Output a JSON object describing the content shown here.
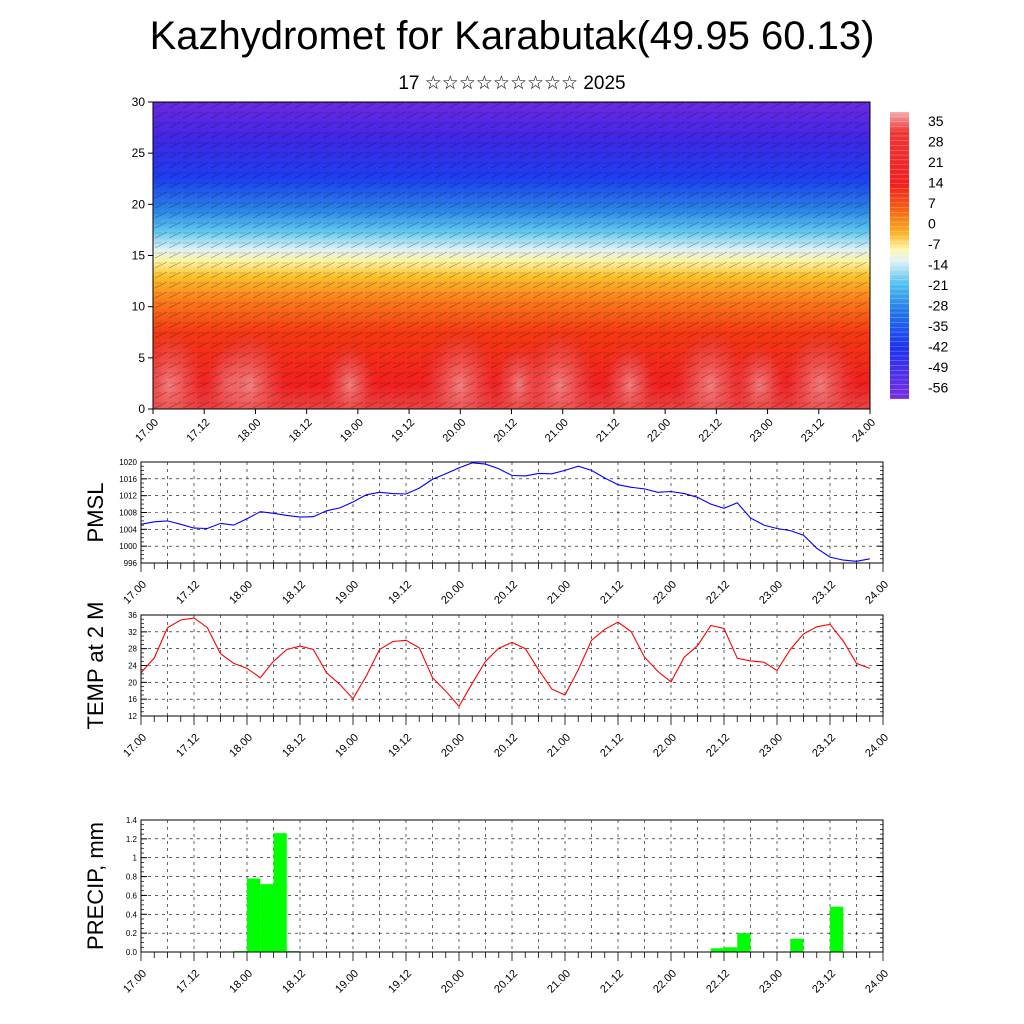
{
  "title": "Kazhydromet for Karabutak(49.95 60.13)",
  "subtitle": "17 ☆☆☆☆☆☆☆☆☆ 2025",
  "colors": {
    "pmsl_line": "#0000ff",
    "temp_line": "#ff0000",
    "precip_bar": "#00ff00"
  },
  "chart_data": [
    {
      "type": "heatmap",
      "name": "cross-section",
      "x_labels": [
        "17.00",
        "17.12",
        "18.00",
        "18.12",
        "19.00",
        "19.12",
        "20.00",
        "20.12",
        "21.00",
        "21.12",
        "22.00",
        "22.12",
        "23.00",
        "23.12",
        "24.00"
      ],
      "yticks": [
        0,
        5,
        10,
        15,
        20,
        25,
        30
      ],
      "ylim": [
        0,
        30
      ],
      "colorbar_labels": [
        "35",
        "28",
        "21",
        "14",
        "7",
        "0",
        "-7",
        "-14",
        "-21",
        "-28",
        "-35",
        "-42",
        "-49",
        "-56"
      ],
      "colorbar_range": [
        -60,
        38
      ]
    },
    {
      "type": "line",
      "name": "pmsl",
      "ylabel": "PMSL",
      "x_labels": [
        "17.00",
        "17.12",
        "18.00",
        "18.12",
        "19.00",
        "19.12",
        "20.00",
        "20.12",
        "21.00",
        "21.12",
        "22.00",
        "22.12",
        "23.00",
        "23.12",
        "24.00"
      ],
      "yticks": [
        996,
        1000,
        1004,
        1008,
        1012,
        1016,
        1020
      ],
      "ylim": [
        996,
        1020
      ],
      "x": [
        0,
        3,
        6,
        9,
        12,
        15,
        18,
        21,
        24,
        27,
        30,
        33,
        36,
        39,
        42,
        45,
        48,
        51,
        54,
        57,
        60,
        63,
        66,
        69,
        72,
        75,
        78,
        81,
        84,
        87,
        90,
        93,
        96,
        99,
        102,
        105,
        108,
        111,
        114,
        117,
        120,
        123,
        126,
        129,
        132,
        135,
        138,
        141,
        144,
        147,
        150,
        153,
        156,
        159,
        162,
        165
      ],
      "y": [
        1005.2,
        1005.8,
        1006.0,
        1005.2,
        1004.3,
        1004.2,
        1005.4,
        1005.0,
        1006.5,
        1008.2,
        1007.8,
        1007.3,
        1006.9,
        1007.0,
        1008.4,
        1009.1,
        1010.5,
        1012.2,
        1012.8,
        1012.5,
        1012.4,
        1013.8,
        1015.9,
        1017.2,
        1018.6,
        1019.8,
        1019.5,
        1018.4,
        1016.8,
        1016.7,
        1017.3,
        1017.2,
        1018.0,
        1019.0,
        1018.0,
        1016.2,
        1014.6,
        1014.0,
        1013.6,
        1012.8,
        1013.0,
        1012.5,
        1011.6,
        1010.0,
        1009.0,
        1010.3,
        1006.7,
        1005.0,
        1004.2,
        1003.7,
        1002.6,
        999.5,
        997.4,
        996.7,
        996.4,
        997.0
      ]
    },
    {
      "type": "line",
      "name": "temp2m",
      "ylabel": "TEMP at 2 M",
      "x_labels": [
        "17.00",
        "17.12",
        "18.00",
        "18.12",
        "19.00",
        "19.12",
        "20.00",
        "20.12",
        "21.00",
        "21.12",
        "22.00",
        "22.12",
        "23.00",
        "23.12",
        "24.00"
      ],
      "yticks": [
        12,
        16,
        20,
        24,
        28,
        32,
        36
      ],
      "ylim": [
        12,
        36
      ],
      "x": [
        0,
        3,
        6,
        9,
        12,
        15,
        18,
        21,
        24,
        27,
        30,
        33,
        36,
        39,
        42,
        45,
        48,
        51,
        54,
        57,
        60,
        63,
        66,
        69,
        72,
        75,
        78,
        81,
        84,
        87,
        90,
        93,
        96,
        99,
        102,
        105,
        108,
        111,
        114,
        117,
        120,
        123,
        126,
        129,
        132,
        135,
        138,
        141,
        144,
        147,
        150,
        153,
        156,
        159,
        162,
        165
      ],
      "y": [
        22.3,
        25.8,
        33.0,
        34.8,
        35.3,
        33.0,
        26.8,
        24.5,
        23.3,
        21.1,
        25.0,
        27.8,
        28.6,
        27.8,
        22.3,
        19.5,
        16.1,
        21.5,
        27.8,
        29.7,
        30.0,
        28.2,
        21.1,
        17.9,
        14.3,
        19.8,
        25.0,
        28.1,
        29.5,
        28.0,
        23.0,
        18.4,
        17.0,
        23.0,
        30.0,
        32.6,
        34.3,
        32.0,
        26.0,
        22.6,
        20.1,
        26.0,
        28.7,
        33.5,
        32.8,
        25.7,
        25.1,
        24.8,
        22.8,
        27.8,
        31.5,
        33.2,
        33.8,
        29.8,
        24.5,
        23.3
      ]
    },
    {
      "type": "bar",
      "name": "precip",
      "ylabel": "PRECIP, mm",
      "x_labels": [
        "17.00",
        "17.12",
        "18.00",
        "18.12",
        "19.00",
        "19.12",
        "20.00",
        "20.12",
        "21.00",
        "21.12",
        "22.00",
        "22.12",
        "23.00",
        "23.12",
        "24.00"
      ],
      "yticks": [
        "0.0",
        "0.2",
        "0.4",
        "0.6",
        "0.8",
        "1",
        "1.2",
        "1.4"
      ],
      "ylim": [
        0,
        1.4
      ],
      "bars": [
        {
          "x": 21,
          "value": 0.01
        },
        {
          "x": 24,
          "value": 0.78
        },
        {
          "x": 27,
          "value": 0.72
        },
        {
          "x": 30,
          "value": 1.26
        },
        {
          "x": 33,
          "value": 0.01
        },
        {
          "x": 129,
          "value": 0.04
        },
        {
          "x": 132,
          "value": 0.05
        },
        {
          "x": 135,
          "value": 0.2
        },
        {
          "x": 147,
          "value": 0.14
        },
        {
          "x": 156,
          "value": 0.48
        }
      ]
    }
  ]
}
